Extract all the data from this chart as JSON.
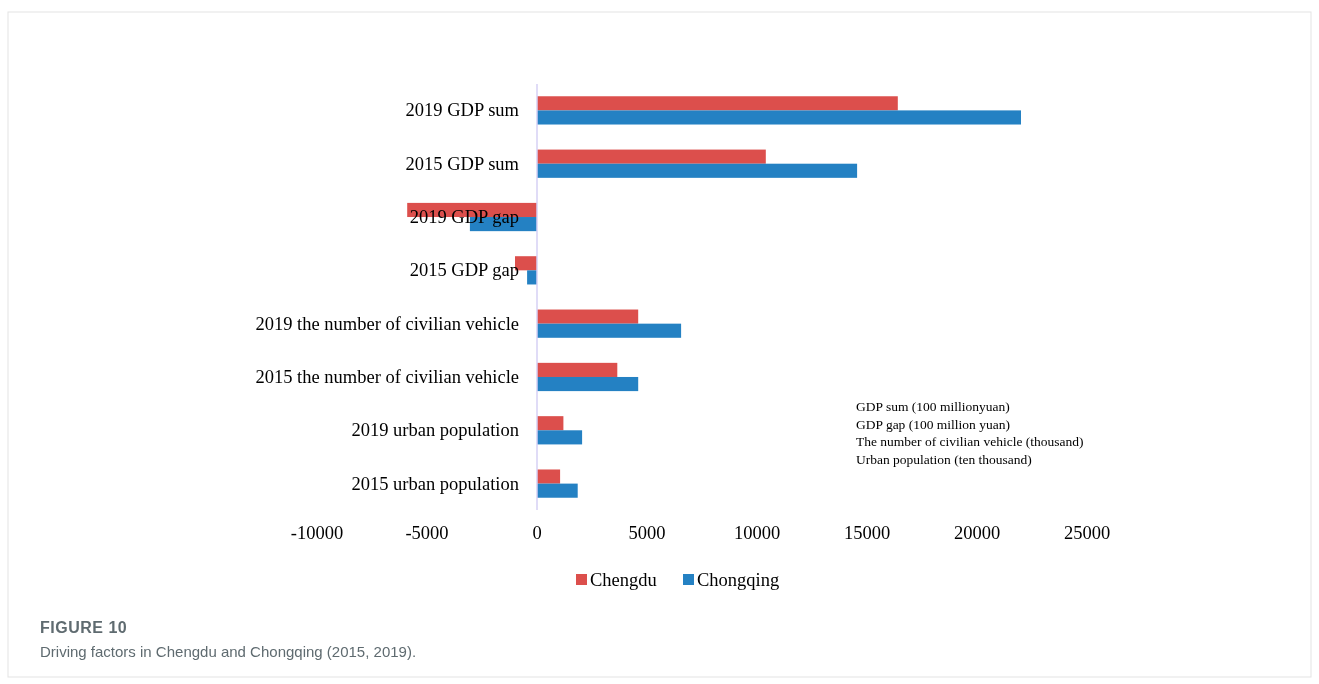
{
  "chart_data": {
    "type": "bar",
    "orientation": "horizontal",
    "title": "FIGURE 10",
    "subtitle": "Driving factors in Chengdu and Chongqing (2015, 2019).",
    "categories": [
      "2019 GDP sum",
      "2015 GDP sum",
      "2019 GDP gap",
      "2015 GDP gap",
      "2019 the number of civilian vehicle",
      "2015 the number of civilian vehicle",
      "2019 urban population",
      "2015 urban population"
    ],
    "series": [
      {
        "name": "Chengdu",
        "color": "#dc4f4c",
        "values": [
          16400,
          10400,
          -5900,
          -1000,
          4600,
          3650,
          1200,
          1050
        ]
      },
      {
        "name": "Chongqing",
        "color": "#2481c3",
        "values": [
          22000,
          14550,
          -3050,
          -450,
          6550,
          4600,
          2050,
          1850
        ]
      }
    ],
    "xlim": [
      -10000,
      25000
    ],
    "xticks": [
      -10000,
      -5000,
      0,
      5000,
      10000,
      15000,
      20000,
      25000
    ],
    "annotations": [
      "GDP sum (100 millionyuan)",
      "GDP gap (100 million yuan)",
      "The number of civilian vehicle (thousand)",
      "Urban population (ten thousand)"
    ],
    "legend": "bottom",
    "grid": false
  }
}
